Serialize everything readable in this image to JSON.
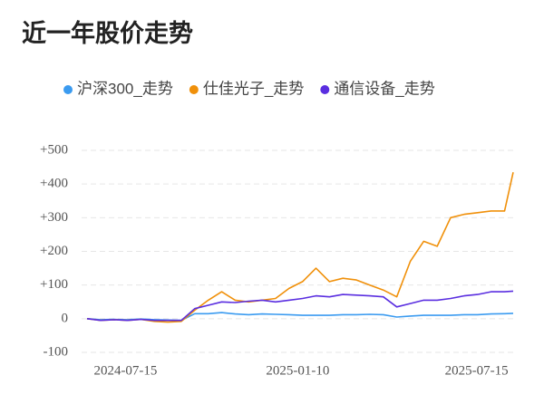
{
  "chart_data": {
    "type": "line",
    "title": "近一年股价走势",
    "x": [
      "2024-06-05",
      "2024-06-19",
      "2024-07-03",
      "2024-07-17",
      "2024-07-31",
      "2024-08-14",
      "2024-08-28",
      "2024-09-11",
      "2024-09-25",
      "2024-10-09",
      "2024-10-23",
      "2024-11-06",
      "2024-11-20",
      "2024-12-04",
      "2024-12-18",
      "2025-01-01",
      "2025-01-15",
      "2025-01-29",
      "2025-02-12",
      "2025-02-26",
      "2025-03-12",
      "2025-03-26",
      "2025-04-09",
      "2025-04-23",
      "2025-05-07",
      "2025-05-21",
      "2025-06-04",
      "2025-06-18",
      "2025-07-02",
      "2025-07-16",
      "2025-07-30",
      "2025-08-13",
      "2025-08-22"
    ],
    "series": [
      {
        "name": "沪深300_走势",
        "color": "#3b9bf0",
        "values": [
          0,
          -3,
          -2,
          -3,
          -1,
          -3,
          -4,
          -5,
          15,
          15,
          18,
          14,
          12,
          14,
          13,
          12,
          10,
          10,
          10,
          12,
          12,
          13,
          12,
          5,
          8,
          10,
          10,
          10,
          12,
          12,
          14,
          15,
          16
        ]
      },
      {
        "name": "仕佳光子_走势",
        "color": "#f0900a",
        "values": [
          0,
          -5,
          -3,
          -5,
          -2,
          -8,
          -10,
          -8,
          25,
          55,
          80,
          55,
          50,
          55,
          60,
          90,
          110,
          150,
          110,
          120,
          115,
          100,
          85,
          65,
          170,
          230,
          215,
          300,
          310,
          315,
          320,
          320,
          435
        ]
      },
      {
        "name": "通信设备_走势",
        "color": "#5a2ee0",
        "values": [
          0,
          -5,
          -3,
          -5,
          -2,
          -5,
          -5,
          -5,
          30,
          40,
          50,
          48,
          52,
          55,
          50,
          55,
          60,
          68,
          65,
          72,
          70,
          68,
          65,
          35,
          45,
          55,
          55,
          60,
          68,
          72,
          80,
          80,
          82
        ]
      }
    ],
    "xlim": [
      "2024-06-05",
      "2025-08-22"
    ],
    "xticks": [
      "2024-07-15",
      "2025-01-10",
      "2025-07-15"
    ],
    "ylim": [
      -100,
      500
    ],
    "yticks": [
      -100,
      0,
      {
        "value": 100,
        "label": "+100"
      },
      {
        "value": 200,
        "label": "+200"
      },
      {
        "value": 300,
        "label": "+300"
      },
      {
        "value": 400,
        "label": "+400"
      },
      {
        "value": 500,
        "label": "+500"
      }
    ],
    "grid": true
  }
}
